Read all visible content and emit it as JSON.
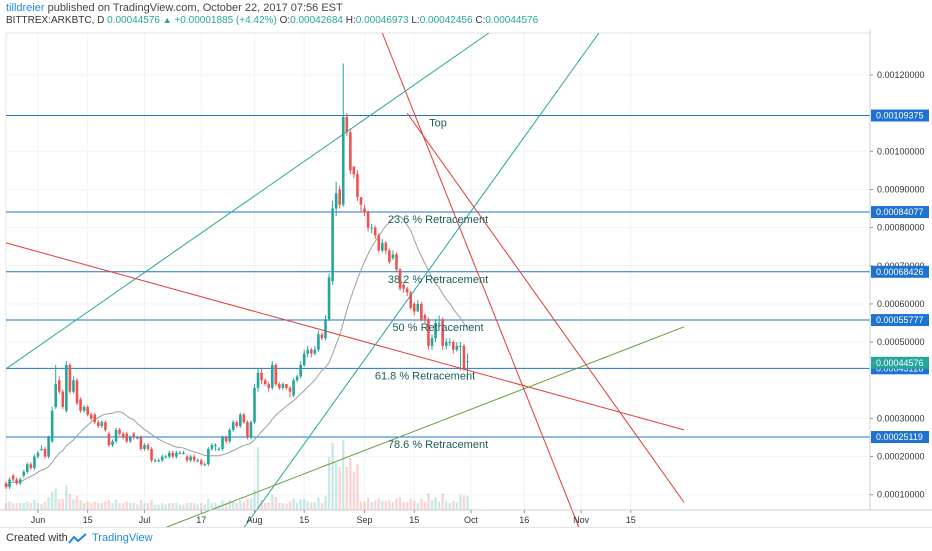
{
  "header": {
    "author": "tilldreier",
    "published_text": "published on TradingView.com, October 22, 2017 07:56 EST",
    "symbol": "BITTREX:ARKBTC, D",
    "last_price": "0.00044576",
    "change": "+0.00001885 (+4.42%)",
    "open_label": "O:",
    "open": "0.00042684",
    "high_label": "H:",
    "high": "0.00046973",
    "low_label": "L:",
    "low": "0.00042456",
    "close_label": "C:",
    "close": "0.00044576"
  },
  "footer": {
    "created_with": "Created with",
    "brand": "TradingView"
  },
  "colors": {
    "up": "#26a69a",
    "down": "#ef5350",
    "fib_line": "#1e73d2",
    "price_tag": "#1e73d2",
    "last_tag": "#26a69a",
    "red_trend": "#e53935",
    "green_trend": "#26a69a",
    "olive_trend": "#689f38",
    "ma": "#9e9e9e"
  },
  "chart_data": {
    "type": "candlestick",
    "xaxis_ticks": [
      "Jun",
      "15",
      "Jul",
      "17",
      "Aug",
      "15",
      "Sep",
      "15",
      "Oct",
      "16",
      "Nov",
      "15"
    ],
    "xaxis_tick_dates": [
      "2017-06-01",
      "2017-06-15",
      "2017-07-01",
      "2017-07-17",
      "2017-08-01",
      "2017-08-15",
      "2017-09-01",
      "2017-09-15",
      "2017-10-01",
      "2017-10-16",
      "2017-11-01",
      "2017-11-15"
    ],
    "yaxis_ticks": [
      "0.00120000",
      "0.00100000",
      "0.00090000",
      "0.00080000",
      "0.00070000",
      "0.00060000",
      "0.00050000",
      "0.00030000",
      "0.00020000",
      "0.00010000"
    ],
    "ylim": [
      6e-05,
      0.00131
    ],
    "price_labels": [
      {
        "label": "0.00109375",
        "value": 0.00109375
      },
      {
        "label": "0.00084077",
        "value": 0.00084077
      },
      {
        "label": "0.00068426",
        "value": 0.00068426
      },
      {
        "label": "0.00055777",
        "value": 0.00055777
      },
      {
        "label": "0.00043128",
        "value": 0.00043128
      },
      {
        "label": "0.00025119",
        "value": 0.00025119
      }
    ],
    "last_price_tag": {
      "label": "0.00044576",
      "value": 0.00044576
    },
    "fib_levels": [
      {
        "label": "Top",
        "value": 0.00109375
      },
      {
        "label": "23.6 % Retracement",
        "value": 0.00084077
      },
      {
        "label": "38.2 % Retracement",
        "value": 0.00068426
      },
      {
        "label": "50 % Retracement",
        "value": 0.00055777
      },
      {
        "label": "61.8 % Retracement",
        "value": 0.00043128
      },
      {
        "label": "78.6 % Retracement",
        "value": 0.00025119
      }
    ],
    "trendlines": [
      {
        "color": "red",
        "from": [
          "2017-05-23",
          0.00076
        ],
        "to": [
          "2017-11-30",
          0.00027
        ]
      },
      {
        "color": "red",
        "from": [
          "2017-09-06",
          0.00131
        ],
        "to": [
          "2017-11-01",
          0.0
        ]
      },
      {
        "color": "red",
        "from": [
          "2017-09-13",
          0.0011
        ],
        "to": [
          "2017-11-30",
          8e-05
        ]
      },
      {
        "color": "green",
        "from": [
          "2017-05-23",
          0.00043
        ],
        "to": [
          "2017-10-06",
          0.00131
        ]
      },
      {
        "color": "green",
        "from": [
          "2017-07-28",
          0.0
        ],
        "to": [
          "2017-11-06",
          0.00131
        ]
      },
      {
        "color": "olive",
        "from": [
          "2017-07-03",
          0.0
        ],
        "to": [
          "2017-11-30",
          0.00054
        ]
      }
    ],
    "candles": {
      "start_date": "2017-05-23",
      "o": [
        0.00013,
        0.00012,
        0.00015,
        0.00014,
        0.00013,
        0.00015,
        0.00016,
        0.00018,
        0.00017,
        0.0002,
        0.00022,
        0.00022,
        0.0002,
        0.00024,
        0.00033,
        0.0004,
        0.00037,
        0.00032,
        0.00044,
        0.00037,
        0.0004,
        0.00035,
        0.00032,
        0.00033,
        0.00031,
        0.00031,
        0.00029,
        0.00028,
        0.00029,
        0.00026,
        0.00023,
        0.00024,
        0.00027,
        0.00026,
        0.00026,
        0.00024,
        0.00026,
        0.00025,
        0.00025,
        0.00022,
        0.00023,
        0.00022,
        0.00019,
        0.00019,
        0.00019,
        0.0002,
        0.0002,
        0.00021,
        0.0002,
        0.00021,
        0.00021,
        0.0002,
        0.00019,
        0.0002,
        0.00019,
        0.00019,
        0.00018,
        0.00018,
        0.00022,
        0.00023,
        0.00022,
        0.00022,
        0.00025,
        0.00024,
        0.00027,
        0.00029,
        0.00028,
        0.00031,
        0.00029,
        0.00025,
        0.00029,
        0.00038,
        0.00042,
        0.0004,
        0.00039,
        0.00038,
        0.00044,
        0.00039,
        0.00038,
        0.00039,
        0.00038,
        0.00036,
        0.0004,
        0.00041,
        0.00044,
        0.00047,
        0.00048,
        0.00047,
        0.00048,
        0.00052,
        0.00051,
        0.00056,
        0.00066,
        0.00085,
        0.0009,
        0.00086,
        0.00109,
        0.00105,
        0.00096,
        0.00094,
        0.00088,
        0.00085,
        0.00084,
        0.0008,
        0.0008,
        0.00078,
        0.00074,
        0.00076,
        0.00074,
        0.00072,
        0.00073,
        0.00069,
        0.00065,
        0.00064,
        0.00063,
        0.0006,
        0.00058,
        0.0006,
        0.00057,
        0.00056,
        0.00049,
        0.00051,
        0.00055,
        0.00056,
        0.00049,
        0.0005,
        0.0005,
        0.00048,
        0.00049,
        0.00049,
        0.00045
      ],
      "c": [
        0.00012,
        0.00014,
        0.00014,
        0.00013,
        0.00014,
        0.00016,
        0.00018,
        0.00017,
        0.0002,
        0.00021,
        0.00022,
        0.0002,
        0.00025,
        0.00032,
        0.00039,
        0.00037,
        0.00033,
        0.00044,
        0.00037,
        0.0004,
        0.00034,
        0.00032,
        0.00033,
        0.00031,
        0.0003,
        0.00029,
        0.00028,
        0.00029,
        0.00027,
        0.00023,
        0.00024,
        0.00027,
        0.00026,
        0.00025,
        0.00024,
        0.00025,
        0.00025,
        0.00025,
        0.00022,
        0.00023,
        0.00022,
        0.00019,
        0.00019,
        0.00019,
        0.0002,
        0.0002,
        0.00021,
        0.0002,
        0.00021,
        0.00021,
        0.00021,
        0.00019,
        0.0002,
        0.00019,
        0.00019,
        0.00018,
        0.00018,
        0.00022,
        0.00023,
        0.00023,
        0.00022,
        0.00025,
        0.00024,
        0.00027,
        0.00029,
        0.00028,
        0.00031,
        0.00029,
        0.00025,
        0.00029,
        0.00038,
        0.00042,
        0.0004,
        0.00039,
        0.00038,
        0.00044,
        0.00039,
        0.00038,
        0.00039,
        0.00038,
        0.00037,
        0.0004,
        0.00041,
        0.00044,
        0.00047,
        0.00048,
        0.00047,
        0.00048,
        0.00052,
        0.00051,
        0.00056,
        0.00067,
        0.00085,
        0.00089,
        0.00086,
        0.00109,
        0.00105,
        0.00095,
        0.00094,
        0.00088,
        0.00086,
        0.00084,
        0.0008,
        0.0008,
        0.00078,
        0.00074,
        0.00076,
        0.00074,
        0.00071,
        0.00073,
        0.00069,
        0.00064,
        0.00064,
        0.00063,
        0.00059,
        0.00058,
        0.0006,
        0.00056,
        0.00056,
        0.00049,
        0.00051,
        0.00055,
        0.00055,
        0.00049,
        0.0005,
        0.0005,
        0.00048,
        0.00049,
        0.00049,
        0.00043,
        0.00045
      ],
      "h": [
        0.000135,
        0.000145,
        0.000155,
        0.000145,
        0.000145,
        0.000165,
        0.000185,
        0.000185,
        0.000205,
        0.000215,
        0.00023,
        0.000225,
        0.000255,
        0.00033,
        0.00044,
        0.00041,
        0.000375,
        0.00045,
        0.000445,
        0.00041,
        0.000405,
        0.000355,
        0.000335,
        0.000335,
        0.000315,
        0.000315,
        0.000295,
        0.000295,
        0.000295,
        0.000265,
        0.000245,
        0.000275,
        0.000275,
        0.000265,
        0.000265,
        0.000255,
        0.000265,
        0.000255,
        0.000255,
        0.000235,
        0.000235,
        0.000225,
        0.000195,
        0.000195,
        0.000205,
        0.000205,
        0.000215,
        0.000215,
        0.000215,
        0.000215,
        0.000215,
        0.000205,
        0.000205,
        0.000205,
        0.000195,
        0.000195,
        0.000185,
        0.000225,
        0.000235,
        0.000235,
        0.000225,
        0.000255,
        0.000255,
        0.000275,
        0.000295,
        0.000295,
        0.000315,
        0.000315,
        0.000295,
        0.000295,
        0.00039,
        0.00043,
        0.00043,
        0.000405,
        0.000395,
        0.00045,
        0.000445,
        0.000395,
        0.000395,
        0.00039,
        0.000385,
        0.000405,
        0.000415,
        0.00045,
        0.00048,
        0.00049,
        0.000485,
        0.00049,
        0.00053,
        0.000525,
        0.00057,
        0.00068,
        0.00087,
        0.00092,
        0.00091,
        0.00123,
        0.0011,
        0.00106,
        0.00096,
        0.00095,
        0.00087,
        0.00086,
        0.000845,
        0.00081,
        0.000805,
        0.000785,
        0.00077,
        0.000765,
        0.000745,
        0.00074,
        0.000735,
        0.000695,
        0.000655,
        0.000645,
        0.000635,
        0.000605,
        0.00061,
        0.000605,
        0.000575,
        0.000565,
        0.00052,
        0.00056,
        0.00057,
        0.000565,
        0.00051,
        0.00051,
        0.000505,
        0.0005,
        0.0005,
        0.000495,
        0.00047
      ],
      "l": [
        0.000115,
        0.000115,
        0.000135,
        0.000125,
        0.000125,
        0.000145,
        0.000155,
        0.000165,
        0.000165,
        0.000195,
        0.000215,
        0.000195,
        0.000195,
        0.000235,
        0.000325,
        0.000365,
        0.000325,
        0.000315,
        0.000365,
        0.000365,
        0.000335,
        0.000315,
        0.000315,
        0.000305,
        0.000295,
        0.000285,
        0.000275,
        0.000275,
        0.000265,
        0.000225,
        0.000225,
        0.000235,
        0.000255,
        0.000245,
        0.000235,
        0.000235,
        0.000245,
        0.000245,
        0.000215,
        0.000215,
        0.000215,
        0.000185,
        0.000185,
        0.000185,
        0.000185,
        0.000195,
        0.000195,
        0.000195,
        0.000195,
        0.000205,
        0.000205,
        0.000185,
        0.000185,
        0.000185,
        0.000185,
        0.000175,
        0.000175,
        0.000175,
        0.000215,
        0.000215,
        0.000215,
        0.000215,
        0.000235,
        0.000235,
        0.000265,
        0.000275,
        0.000275,
        0.000285,
        0.000245,
        0.000245,
        0.000285,
        0.00037,
        0.00039,
        0.000385,
        0.00037,
        0.000375,
        0.000385,
        0.000375,
        0.000375,
        0.000375,
        0.000355,
        0.000355,
        0.000395,
        0.000405,
        0.000435,
        0.00046,
        0.00046,
        0.000465,
        0.000475,
        0.000505,
        0.000505,
        0.000555,
        0.00065,
        0.00083,
        0.00085,
        0.000855,
        0.00104,
        0.00094,
        0.00093,
        0.00087,
        0.00084,
        0.00083,
        0.00079,
        0.000785,
        0.00077,
        0.000735,
        0.000735,
        0.00073,
        0.000705,
        0.000715,
        0.000685,
        0.000635,
        0.00063,
        0.00062,
        0.000585,
        0.00057,
        0.00059,
        0.000555,
        0.00055,
        0.00048,
        0.00048,
        0.0005,
        0.00054,
        0.00048,
        0.00048,
        0.00049,
        0.00047,
        0.000475,
        0.000425,
        0.000425,
        0.0004
      ]
    },
    "volume_max": 1.0
  }
}
